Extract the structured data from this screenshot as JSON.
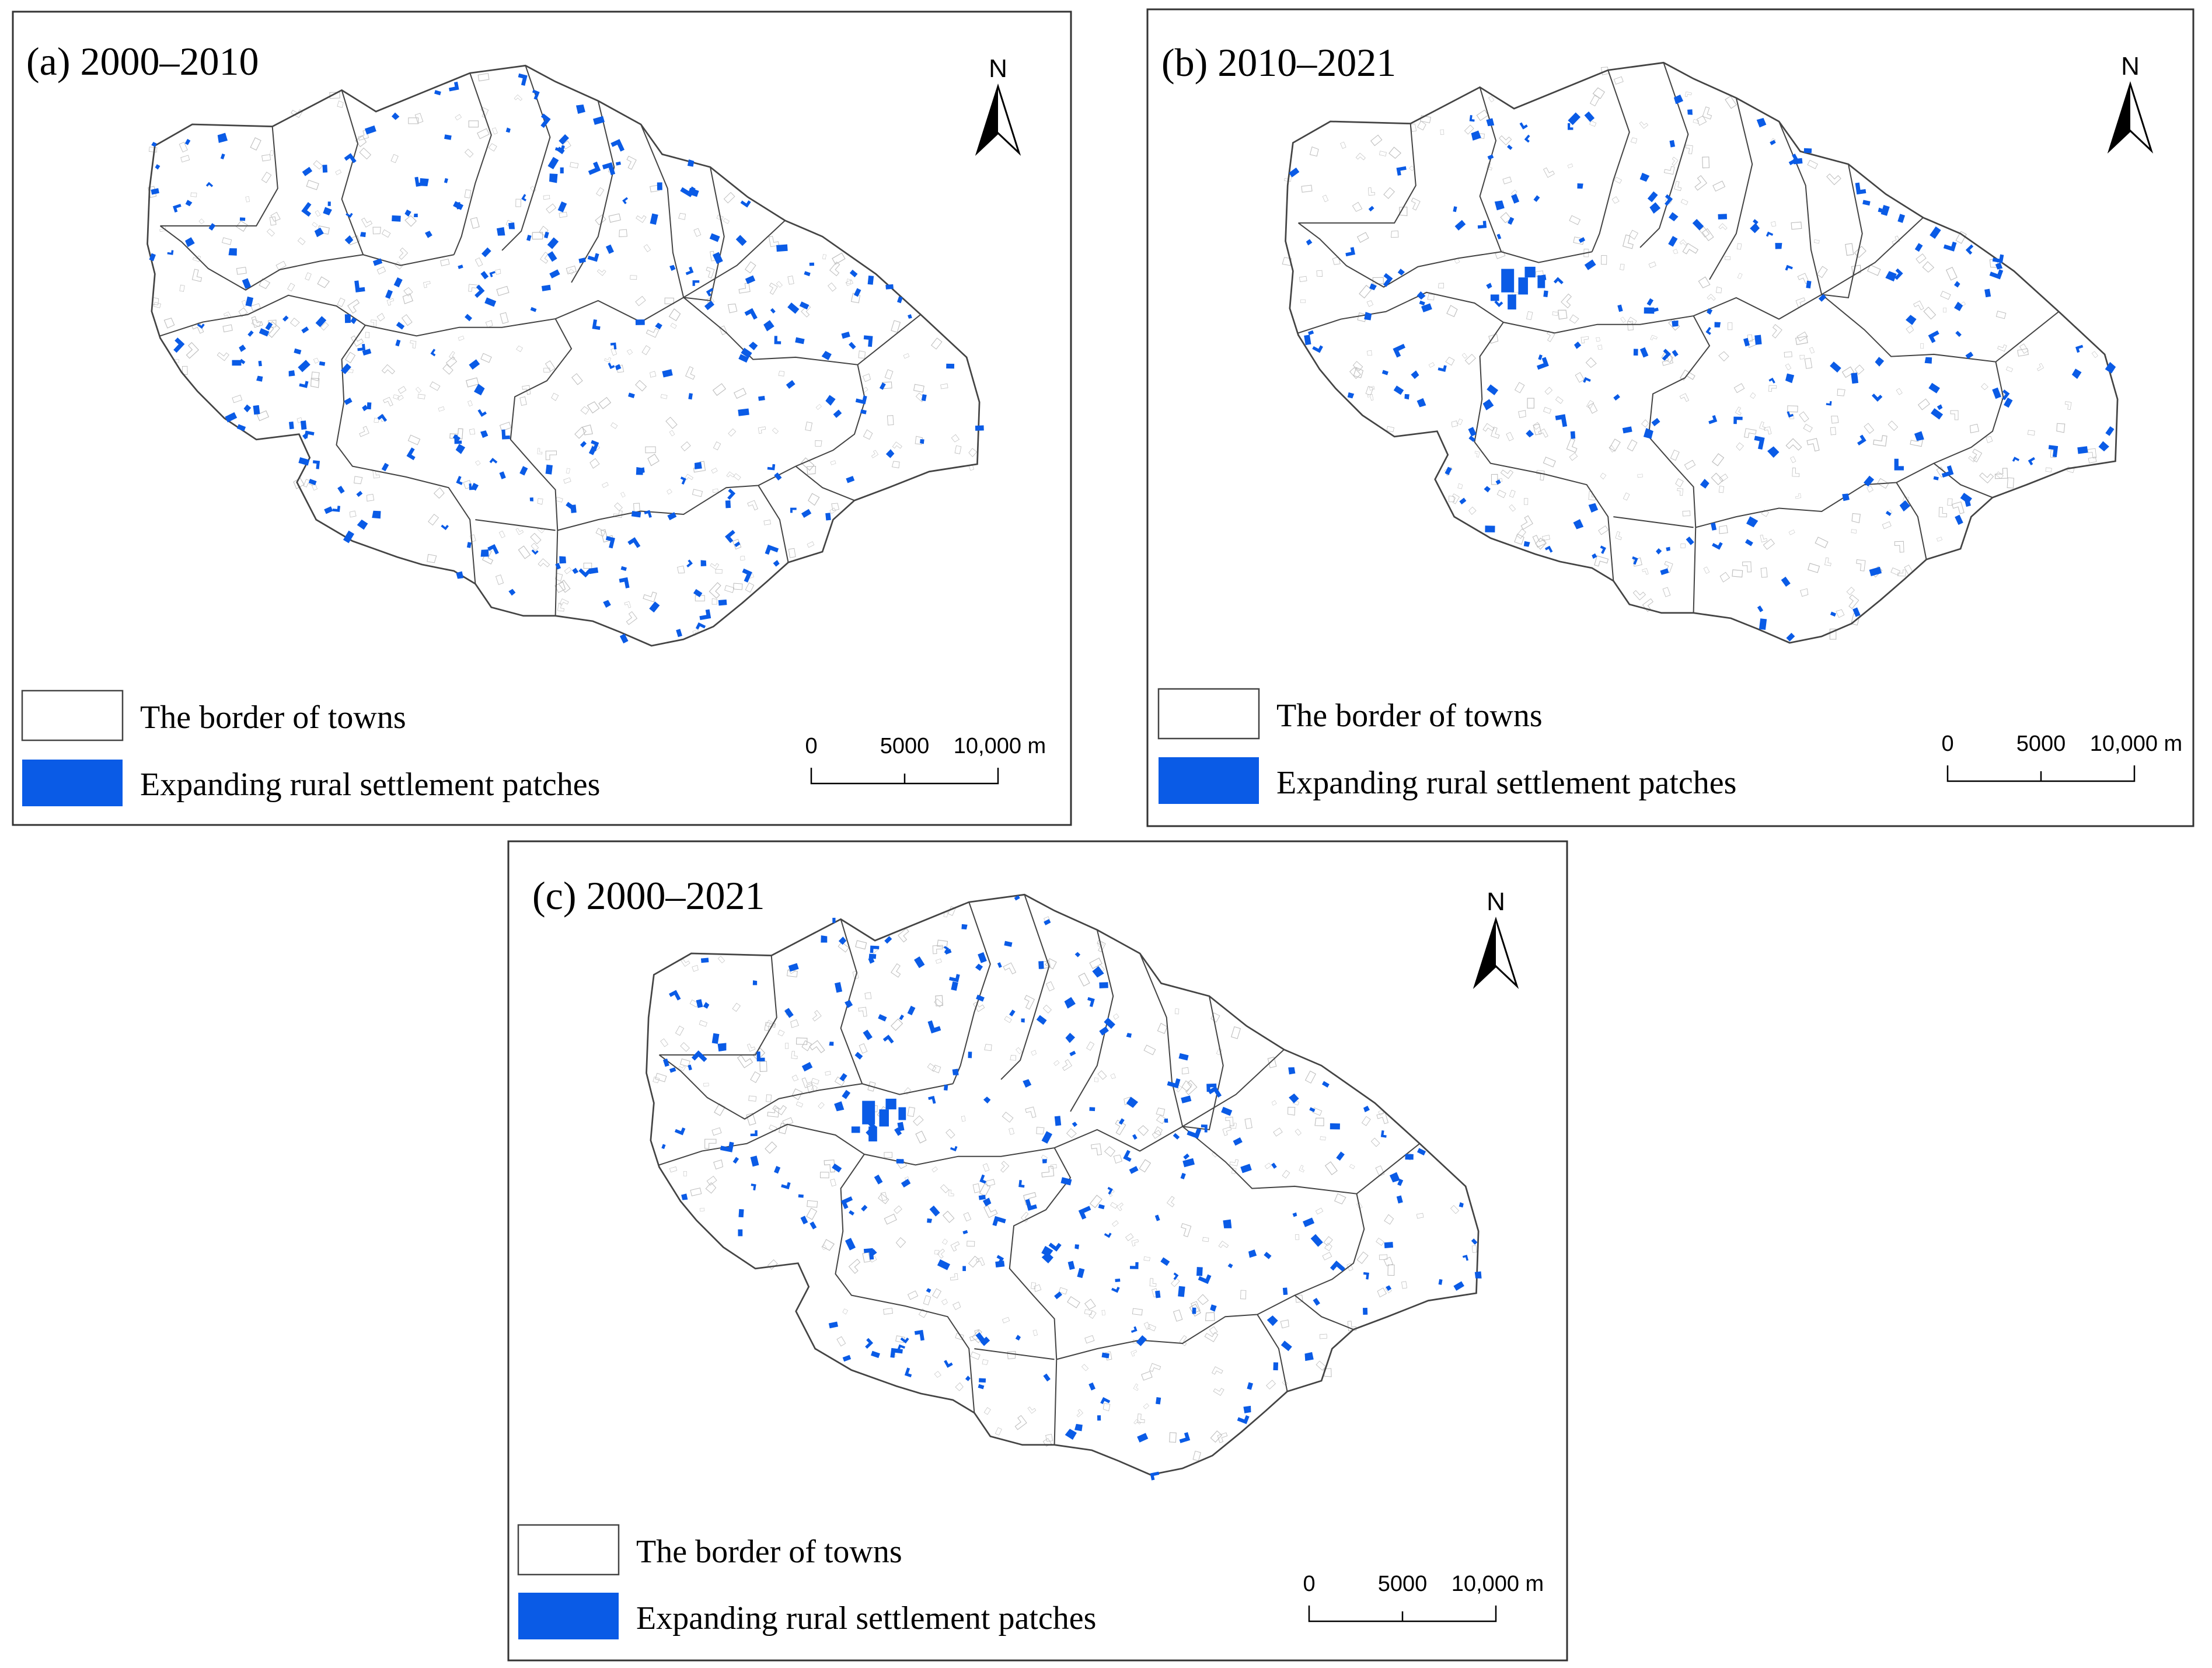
{
  "panels": [
    {
      "id": "a",
      "title": "(a) 2000–2010",
      "highlight_density": "high",
      "expansion_centre": false
    },
    {
      "id": "b",
      "title": "(b) 2010–2021",
      "highlight_density": "low",
      "expansion_centre": true
    },
    {
      "id": "c",
      "title": "(c) 2000–2021",
      "highlight_density": "medium",
      "expansion_centre": true
    }
  ],
  "legend": {
    "border_label": "The border of towns",
    "patch_label": "Expanding rural settlement patches"
  },
  "scale_bar": {
    "ticks": [
      "0",
      "5000",
      "10,000 m"
    ]
  },
  "north_arrow": {
    "label": "N"
  },
  "colors": {
    "patch": "#0a5be6",
    "outline": "#444444",
    "frame": "#333333",
    "faint_settlement": "#bdbdbd"
  }
}
